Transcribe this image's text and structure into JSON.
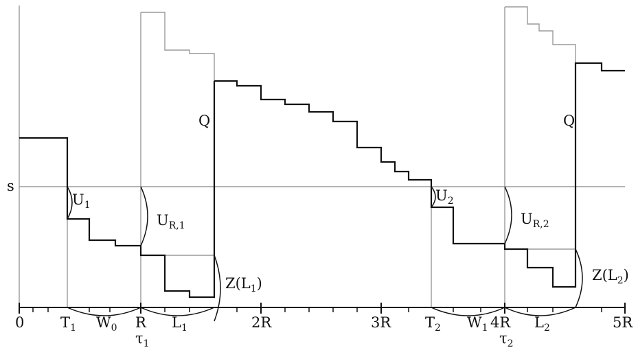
{
  "colors": {
    "main_line": "#111111",
    "guide_line": "#9a9a9a",
    "axis": "#111111"
  },
  "labels": {
    "s": "s",
    "Q_first": "Q",
    "Q_second": "Q",
    "U1": {
      "base": "U",
      "sub": "1"
    },
    "U2": {
      "base": "U",
      "sub": "2"
    },
    "UR1": {
      "base": "U",
      "sub": "R,1"
    },
    "UR2": {
      "base": "U",
      "sub": "R,2"
    },
    "ZL1": {
      "pre": "Z(L",
      "sub": "1",
      "post": ")"
    },
    "ZL2": {
      "pre": "Z(L",
      "sub": "2",
      "post": ")"
    }
  },
  "axis_ticks": {
    "zero": "0",
    "T1": {
      "base": "T",
      "sub": "1"
    },
    "W0": {
      "base": "W",
      "sub": "0"
    },
    "R": "R",
    "tau1": {
      "base": "τ",
      "sub": "1"
    },
    "L1": {
      "base": "L",
      "sub": "1"
    },
    "twoR": "2R",
    "threeR": "3R",
    "T2": {
      "base": "T",
      "sub": "2"
    },
    "W1": {
      "base": "W",
      "sub": "1"
    },
    "fourR": "4R",
    "tau2": {
      "base": "τ",
      "sub": "2"
    },
    "L2": {
      "base": "L",
      "sub": "2"
    },
    "fiveR": "5R"
  }
}
